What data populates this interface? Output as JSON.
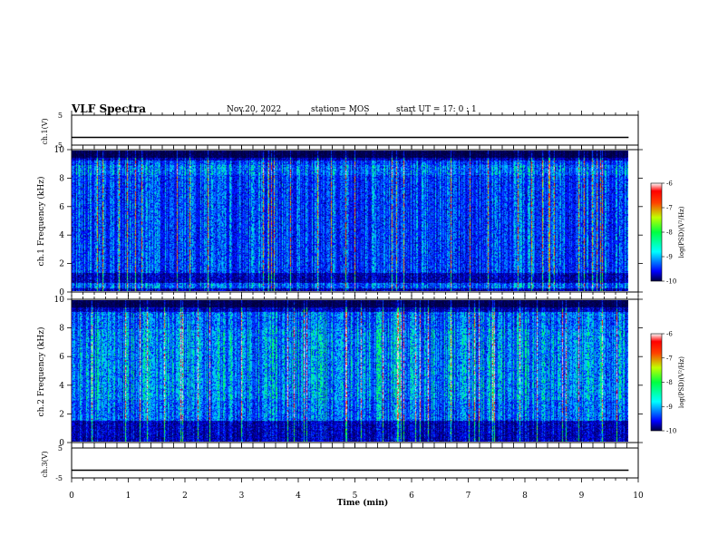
{
  "header": {
    "title": "VLF Spectra",
    "date": "Nov.20, 2022",
    "station": "station= MOS",
    "start": "start UT = 17: 0 : 1"
  },
  "chart_data": [
    {
      "type": "line",
      "name": "ch1-waveform",
      "ylabel": "ch.1(V)",
      "ylim": [
        -5,
        5
      ],
      "yticks": [
        "5",
        "-5"
      ],
      "xlim": [
        0,
        10
      ],
      "x": [
        0,
        9.83
      ],
      "y": [
        0,
        0
      ]
    },
    {
      "type": "heatmap",
      "name": "ch1-spectrogram",
      "ylabel": "ch.1 Frequency (kHz)",
      "ylim": [
        0,
        10
      ],
      "yticks": [
        "0",
        "2",
        "4",
        "6",
        "8",
        "10"
      ],
      "xlim": [
        0,
        10
      ],
      "x_data_end": 9.83,
      "colorbar": {
        "label": "log(PSD)(V²/Hz)",
        "range": [
          -10,
          -6
        ],
        "ticks": [
          "-6",
          "-7",
          "-8",
          "-9",
          "-10"
        ]
      }
    },
    {
      "type": "heatmap",
      "name": "ch2-spectrogram",
      "ylabel": "ch.2 Frequency (kHz)",
      "ylim": [
        0,
        10
      ],
      "yticks": [
        "0",
        "2",
        "4",
        "6",
        "8",
        "10"
      ],
      "xlim": [
        0,
        10
      ],
      "x_data_end": 9.83,
      "colorbar": {
        "label": "log(PSD)(V²/Hz)",
        "range": [
          -10,
          -6
        ],
        "ticks": [
          "-6",
          "-7",
          "-8",
          "-9",
          "-10"
        ]
      }
    },
    {
      "type": "line",
      "name": "ch3-waveform",
      "ylabel": "ch.3(V)",
      "ylim": [
        -5,
        5
      ],
      "yticks": [
        "5",
        "-5"
      ],
      "xlim": [
        0,
        10
      ],
      "x": [
        0,
        9.83
      ],
      "y": [
        0,
        0
      ]
    }
  ],
  "xaxis": {
    "label": "Time (min)",
    "ticks": [
      "0",
      "1",
      "2",
      "3",
      "4",
      "5",
      "6",
      "7",
      "8",
      "9",
      "10"
    ]
  },
  "colors": {
    "background": "#000010",
    "colormap": [
      "#000080",
      "#0000ff",
      "#0080ff",
      "#00ffff",
      "#00ff80",
      "#80ff00",
      "#ffff00",
      "#ff8000",
      "#ff0000",
      "#ffffff"
    ]
  }
}
